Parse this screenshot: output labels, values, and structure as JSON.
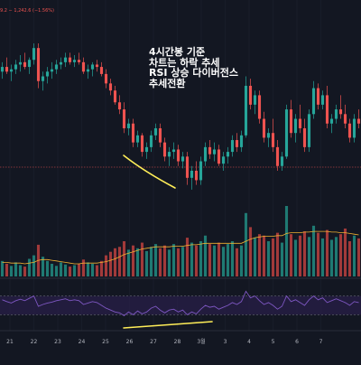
{
  "header": {
    "price_text": "9.2  − 1,242.6 (−1.56%)"
  },
  "annotation_lines": [
    "4시간봉 기준",
    "차트는 하락 추세",
    "RSI 상승 다이버전스",
    "추세전환"
  ],
  "colors": {
    "background": "#131722",
    "up": "#26a69a",
    "down": "#ef5350",
    "volume_up": "#1f7a73",
    "volume_down": "#a23a3a",
    "volume_ma": "#f0b030",
    "rsi_line": "#7e57c2",
    "rsi_band": "#2a1f4a",
    "divergence_marker": "#ffee58",
    "grid": "#1e2230",
    "axis_text": "#b2b5be"
  },
  "chart_data": {
    "type": "candlestick",
    "timeframe": "4h",
    "x_tick_labels": [
      "21",
      "22",
      "23",
      "24",
      "25",
      "26",
      "27",
      "28",
      "3월",
      "3",
      "4",
      "5",
      "6",
      "7"
    ],
    "price_ylim": [
      40,
      125
    ],
    "candles": [
      {
        "o": 100,
        "h": 104,
        "l": 97,
        "c": 102
      },
      {
        "o": 102,
        "h": 106,
        "l": 99,
        "c": 100
      },
      {
        "o": 100,
        "h": 103,
        "l": 96,
        "c": 101
      },
      {
        "o": 101,
        "h": 105,
        "l": 99,
        "c": 103
      },
      {
        "o": 103,
        "h": 107,
        "l": 100,
        "c": 104
      },
      {
        "o": 104,
        "h": 108,
        "l": 101,
        "c": 102
      },
      {
        "o": 102,
        "h": 106,
        "l": 99,
        "c": 105
      },
      {
        "o": 105,
        "h": 112,
        "l": 103,
        "c": 110
      },
      {
        "o": 110,
        "h": 112,
        "l": 93,
        "c": 96
      },
      {
        "o": 96,
        "h": 100,
        "l": 92,
        "c": 98
      },
      {
        "o": 98,
        "h": 102,
        "l": 95,
        "c": 100
      },
      {
        "o": 100,
        "h": 104,
        "l": 97,
        "c": 101
      },
      {
        "o": 101,
        "h": 105,
        "l": 99,
        "c": 103
      },
      {
        "o": 103,
        "h": 106,
        "l": 101,
        "c": 104
      },
      {
        "o": 104,
        "h": 108,
        "l": 102,
        "c": 106
      },
      {
        "o": 106,
        "h": 108,
        "l": 103,
        "c": 104
      },
      {
        "o": 104,
        "h": 107,
        "l": 102,
        "c": 105
      },
      {
        "o": 105,
        "h": 108,
        "l": 103,
        "c": 104
      },
      {
        "o": 104,
        "h": 106,
        "l": 99,
        "c": 100
      },
      {
        "o": 100,
        "h": 103,
        "l": 97,
        "c": 101
      },
      {
        "o": 101,
        "h": 104,
        "l": 98,
        "c": 103
      },
      {
        "o": 103,
        "h": 105,
        "l": 100,
        "c": 102
      },
      {
        "o": 102,
        "h": 104,
        "l": 98,
        "c": 99
      },
      {
        "o": 99,
        "h": 101,
        "l": 93,
        "c": 95
      },
      {
        "o": 95,
        "h": 97,
        "l": 90,
        "c": 92
      },
      {
        "o": 92,
        "h": 94,
        "l": 86,
        "c": 87
      },
      {
        "o": 87,
        "h": 90,
        "l": 82,
        "c": 84
      },
      {
        "o": 84,
        "h": 87,
        "l": 74,
        "c": 76
      },
      {
        "o": 76,
        "h": 80,
        "l": 73,
        "c": 78
      },
      {
        "o": 78,
        "h": 80,
        "l": 68,
        "c": 70
      },
      {
        "o": 70,
        "h": 75,
        "l": 68,
        "c": 73
      },
      {
        "o": 73,
        "h": 74,
        "l": 64,
        "c": 66
      },
      {
        "o": 66,
        "h": 70,
        "l": 63,
        "c": 68
      },
      {
        "o": 68,
        "h": 75,
        "l": 66,
        "c": 73
      },
      {
        "o": 73,
        "h": 78,
        "l": 71,
        "c": 76
      },
      {
        "o": 76,
        "h": 78,
        "l": 68,
        "c": 70
      },
      {
        "o": 70,
        "h": 72,
        "l": 62,
        "c": 64
      },
      {
        "o": 64,
        "h": 68,
        "l": 60,
        "c": 66
      },
      {
        "o": 66,
        "h": 70,
        "l": 63,
        "c": 67
      },
      {
        "o": 67,
        "h": 69,
        "l": 60,
        "c": 62
      },
      {
        "o": 62,
        "h": 66,
        "l": 59,
        "c": 64
      },
      {
        "o": 64,
        "h": 66,
        "l": 52,
        "c": 55
      },
      {
        "o": 55,
        "h": 60,
        "l": 50,
        "c": 58
      },
      {
        "o": 58,
        "h": 62,
        "l": 52,
        "c": 54
      },
      {
        "o": 54,
        "h": 64,
        "l": 52,
        "c": 62
      },
      {
        "o": 62,
        "h": 70,
        "l": 60,
        "c": 68
      },
      {
        "o": 68,
        "h": 71,
        "l": 63,
        "c": 65
      },
      {
        "o": 65,
        "h": 70,
        "l": 62,
        "c": 67
      },
      {
        "o": 67,
        "h": 69,
        "l": 60,
        "c": 61
      },
      {
        "o": 61,
        "h": 66,
        "l": 58,
        "c": 64
      },
      {
        "o": 64,
        "h": 68,
        "l": 61,
        "c": 66
      },
      {
        "o": 66,
        "h": 73,
        "l": 64,
        "c": 71
      },
      {
        "o": 71,
        "h": 74,
        "l": 66,
        "c": 68
      },
      {
        "o": 68,
        "h": 75,
        "l": 66,
        "c": 73
      },
      {
        "o": 73,
        "h": 98,
        "l": 72,
        "c": 94
      },
      {
        "o": 94,
        "h": 97,
        "l": 84,
        "c": 86
      },
      {
        "o": 86,
        "h": 92,
        "l": 82,
        "c": 90
      },
      {
        "o": 90,
        "h": 92,
        "l": 78,
        "c": 80
      },
      {
        "o": 80,
        "h": 83,
        "l": 70,
        "c": 72
      },
      {
        "o": 72,
        "h": 76,
        "l": 68,
        "c": 74
      },
      {
        "o": 74,
        "h": 80,
        "l": 66,
        "c": 68
      },
      {
        "o": 68,
        "h": 71,
        "l": 58,
        "c": 60
      },
      {
        "o": 60,
        "h": 66,
        "l": 58,
        "c": 64
      },
      {
        "o": 64,
        "h": 86,
        "l": 63,
        "c": 84
      },
      {
        "o": 84,
        "h": 88,
        "l": 72,
        "c": 74
      },
      {
        "o": 74,
        "h": 82,
        "l": 70,
        "c": 80
      },
      {
        "o": 80,
        "h": 86,
        "l": 74,
        "c": 76
      },
      {
        "o": 76,
        "h": 80,
        "l": 66,
        "c": 68
      },
      {
        "o": 68,
        "h": 84,
        "l": 66,
        "c": 82
      },
      {
        "o": 82,
        "h": 96,
        "l": 80,
        "c": 93
      },
      {
        "o": 93,
        "h": 95,
        "l": 84,
        "c": 86
      },
      {
        "o": 86,
        "h": 92,
        "l": 84,
        "c": 90
      },
      {
        "o": 90,
        "h": 94,
        "l": 76,
        "c": 78
      },
      {
        "o": 78,
        "h": 82,
        "l": 74,
        "c": 80
      },
      {
        "o": 80,
        "h": 86,
        "l": 78,
        "c": 84
      },
      {
        "o": 84,
        "h": 90,
        "l": 80,
        "c": 82
      },
      {
        "o": 82,
        "h": 86,
        "l": 76,
        "c": 78
      },
      {
        "o": 78,
        "h": 80,
        "l": 70,
        "c": 72
      },
      {
        "o": 72,
        "h": 82,
        "l": 70,
        "c": 80
      },
      {
        "o": 80,
        "h": 84,
        "l": 76,
        "c": 78
      }
    ],
    "volume_ylim": [
      0,
      100
    ],
    "volume": [
      22,
      18,
      15,
      20,
      16,
      14,
      25,
      30,
      45,
      28,
      22,
      18,
      15,
      20,
      17,
      14,
      16,
      18,
      24,
      20,
      18,
      16,
      22,
      30,
      35,
      40,
      42,
      50,
      38,
      44,
      40,
      48,
      36,
      42,
      46,
      40,
      44,
      38,
      46,
      40,
      42,
      55,
      48,
      44,
      50,
      58,
      46,
      44,
      48,
      42,
      46,
      50,
      40,
      44,
      90,
      70,
      55,
      60,
      58,
      50,
      54,
      62,
      48,
      100,
      60,
      52,
      58,
      64,
      56,
      72,
      62,
      54,
      66,
      52,
      56,
      60,
      68,
      50,
      58,
      54
    ],
    "volume_ma": [
      20,
      20,
      19,
      19,
      19,
      18,
      19,
      20,
      23,
      24,
      24,
      23,
      22,
      21,
      20,
      19,
      18,
      18,
      19,
      19,
      19,
      19,
      20,
      21,
      23,
      25,
      28,
      31,
      33,
      35,
      37,
      39,
      40,
      41,
      42,
      42,
      42,
      42,
      43,
      43,
      43,
      44,
      45,
      45,
      46,
      47,
      47,
      47,
      47,
      47,
      47,
      47,
      47,
      47,
      50,
      53,
      55,
      56,
      57,
      57,
      57,
      58,
      58,
      61,
      62,
      62,
      62,
      63,
      63,
      64,
      64,
      64,
      64,
      63,
      63,
      62,
      62,
      61,
      60,
      59
    ],
    "rsi_ylim": [
      0,
      100
    ],
    "rsi": [
      62,
      58,
      55,
      60,
      63,
      60,
      65,
      70,
      48,
      52,
      55,
      57,
      60,
      62,
      64,
      60,
      62,
      60,
      52,
      55,
      58,
      56,
      50,
      44,
      40,
      36,
      34,
      28,
      36,
      30,
      38,
      32,
      36,
      44,
      48,
      40,
      34,
      40,
      42,
      36,
      40,
      30,
      36,
      32,
      42,
      50,
      46,
      48,
      42,
      46,
      50,
      56,
      52,
      58,
      80,
      66,
      70,
      60,
      52,
      56,
      50,
      42,
      48,
      70,
      58,
      62,
      56,
      50,
      62,
      70,
      62,
      66,
      56,
      60,
      64,
      60,
      56,
      50,
      58,
      56
    ],
    "rsi_band": [
      30,
      70
    ]
  }
}
